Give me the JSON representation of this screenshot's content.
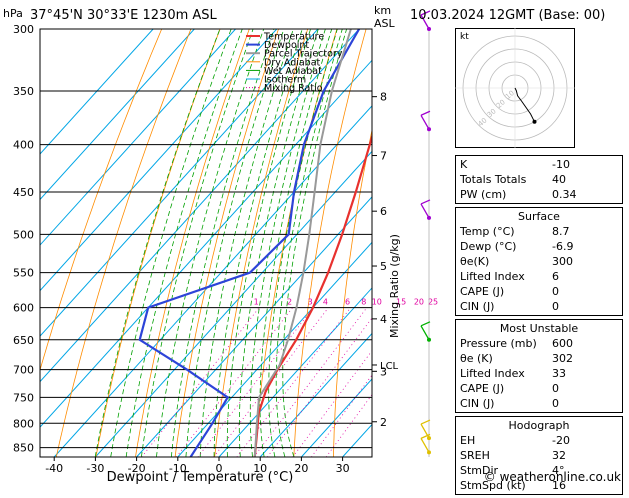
{
  "header": {
    "location": "37°45'N  30°33'E  1230m  ASL",
    "datetime": "10.03.2024  12GMT  (Base: 00)",
    "hpa_unit": "hPa",
    "km_unit": "km",
    "asl_unit": "ASL"
  },
  "chart_data": {
    "type": "line",
    "title": "37°45'N  30°33'E  1230m  ASL",
    "xlabel": "Dewpoint / Temperature (°C)",
    "ylabel": "hPa",
    "right_ylabel": "Mixing Ratio (g/kg)",
    "xlim": [
      -45,
      37
    ],
    "ylim": [
      300,
      870
    ],
    "x_ticks": [
      -40,
      -30,
      -20,
      -10,
      0,
      10,
      20,
      30
    ],
    "pressure_levels": [
      300,
      350,
      400,
      450,
      500,
      550,
      600,
      650,
      700,
      750,
      800,
      850
    ],
    "km_ticks": [
      {
        "label": "8",
        "p": 355
      },
      {
        "label": "7",
        "p": 411
      },
      {
        "label": "6",
        "p": 472
      },
      {
        "label": "5",
        "p": 541
      },
      {
        "label": "4",
        "p": 617
      },
      {
        "label": "3",
        "p": 703
      },
      {
        "label": "2",
        "p": 797
      }
    ],
    "lcl": {
      "label": "LCL",
      "p": 692
    },
    "mixing_ratio_labels": [
      "1",
      "2",
      "3",
      "4",
      "6",
      "8",
      "10",
      "15",
      "20",
      "25"
    ],
    "legend": [
      "Temperature",
      "Dewpoint",
      "Parcel Trajectory",
      "Dry Adiabat",
      "Wet Adiabat",
      "Isotherm",
      "Mixing Ratio"
    ],
    "legend_position": "top",
    "colors": {
      "temperature": "#e8312e",
      "dewpoint": "#2d44d8",
      "parcel": "#999999",
      "dry_adiabat": "#ff8c00",
      "wet_adiabat": "#00a000",
      "isotherm": "#00a6e6",
      "mixing_ratio": "#e000a0"
    },
    "series": [
      {
        "name": "Temperature",
        "points": [
          [
            8.7,
            870
          ],
          [
            4,
            820
          ],
          [
            0,
            780
          ],
          [
            -3,
            740
          ],
          [
            -5,
            700
          ],
          [
            -7,
            650
          ],
          [
            -10,
            600
          ],
          [
            -14,
            550
          ],
          [
            -19,
            500
          ],
          [
            -25,
            450
          ],
          [
            -32,
            400
          ],
          [
            -40,
            350
          ],
          [
            -47,
            300
          ]
        ]
      },
      {
        "name": "Dewpoint",
        "points": [
          [
            -6.9,
            870
          ],
          [
            -7.5,
            850
          ],
          [
            -9,
            800
          ],
          [
            -11,
            750
          ],
          [
            -27,
            700
          ],
          [
            -45,
            650
          ],
          [
            -50,
            600
          ],
          [
            -33,
            550
          ],
          [
            -32,
            500
          ],
          [
            -40,
            450
          ],
          [
            -48,
            400
          ],
          [
            -55,
            350
          ],
          [
            -60,
            300
          ]
        ]
      },
      {
        "name": "Parcel Trajectory",
        "points": [
          [
            8.7,
            870
          ],
          [
            1.8,
            800
          ],
          [
            -3.4,
            750
          ],
          [
            -5.5,
            692
          ],
          [
            -9,
            650
          ],
          [
            -14,
            600
          ],
          [
            -20,
            550
          ],
          [
            -27,
            500
          ],
          [
            -35,
            450
          ],
          [
            -44,
            400
          ],
          [
            -53,
            350
          ],
          [
            -62,
            300
          ]
        ]
      }
    ],
    "wind_barbs": [
      {
        "p": 300,
        "color": "#a000d0"
      },
      {
        "p": 385,
        "color": "#a000d0"
      },
      {
        "p": 480,
        "color": "#a000d0"
      },
      {
        "p": 650,
        "color": "#00b000"
      },
      {
        "p": 830,
        "color": "#e0c000"
      },
      {
        "p": 860,
        "color": "#e0c000"
      }
    ]
  },
  "hodograph": {
    "label": "kt",
    "ring_labels": [
      "10",
      "20",
      "30",
      "40"
    ],
    "trace": [
      [
        0,
        0
      ],
      [
        1,
        -2
      ],
      [
        2,
        -6
      ],
      [
        5,
        -10
      ],
      [
        12,
        -20
      ],
      [
        15,
        -26
      ]
    ]
  },
  "indices": [
    {
      "label": "K",
      "value": "-10"
    },
    {
      "label": "Totals Totals",
      "value": "40"
    },
    {
      "label": "PW (cm)",
      "value": "0.34"
    }
  ],
  "surface": {
    "title": "Surface",
    "rows": [
      {
        "label": "Temp (°C)",
        "value": "8.7"
      },
      {
        "label": "Dewp (°C)",
        "value": "-6.9"
      },
      {
        "label": "θe(K)",
        "value": "300"
      },
      {
        "label": "Lifted Index",
        "value": "6"
      },
      {
        "label": "CAPE (J)",
        "value": "0"
      },
      {
        "label": "CIN (J)",
        "value": "0"
      }
    ]
  },
  "most_unstable": {
    "title": "Most Unstable",
    "rows": [
      {
        "label": "Pressure (mb)",
        "value": "600"
      },
      {
        "label": "θe (K)",
        "value": "302"
      },
      {
        "label": "Lifted Index",
        "value": "33"
      },
      {
        "label": "CAPE (J)",
        "value": "0"
      },
      {
        "label": "CIN (J)",
        "value": "0"
      }
    ]
  },
  "hodograph_box": {
    "title": "Hodograph",
    "rows": [
      {
        "label": "EH",
        "value": "-20"
      },
      {
        "label": "SREH",
        "value": "32"
      },
      {
        "label": "StmDir",
        "value": "4°"
      },
      {
        "label": "StmSpd (kt)",
        "value": "16"
      }
    ]
  },
  "copyright": "© weatheronline.co.uk"
}
